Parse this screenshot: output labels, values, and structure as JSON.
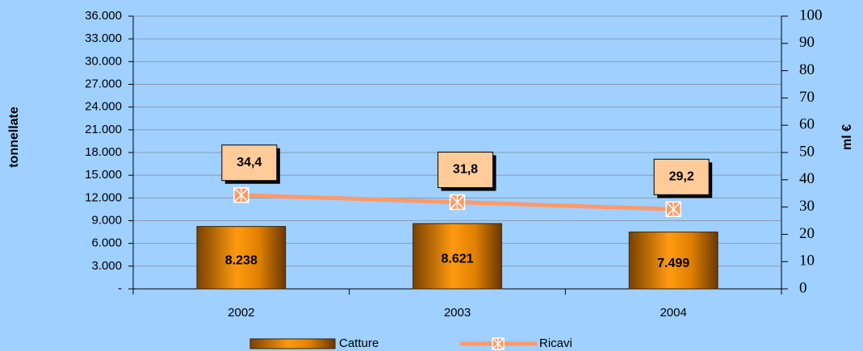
{
  "chart_data": {
    "type": "bar",
    "categories": [
      "2002",
      "2003",
      "2004"
    ],
    "series": [
      {
        "name": "Catture",
        "type": "bar",
        "color": "#cc7a00",
        "values": [
          8238,
          8621,
          7499
        ],
        "value_labels": [
          "8.238",
          "8.621",
          "7.499"
        ]
      },
      {
        "name": "Ricavi",
        "type": "line",
        "axis": "y2",
        "color": "#ff9966",
        "values": [
          34.4,
          31.8,
          29.2
        ],
        "value_labels": [
          "34,4",
          "31,8",
          "29,2"
        ]
      }
    ],
    "ylabel": "tonnellate",
    "y2label": "ml €",
    "ylim": [
      0,
      36000
    ],
    "yticks": [
      {
        "value": 0,
        "label": "-"
      },
      {
        "value": 3000,
        "label": "3.000"
      },
      {
        "value": 6000,
        "label": "6.000"
      },
      {
        "value": 9000,
        "label": "9.000"
      },
      {
        "value": 12000,
        "label": "12.000"
      },
      {
        "value": 15000,
        "label": "15.000"
      },
      {
        "value": 18000,
        "label": "18.000"
      },
      {
        "value": 21000,
        "label": "21.000"
      },
      {
        "value": 24000,
        "label": "24.000"
      },
      {
        "value": 27000,
        "label": "27.000"
      },
      {
        "value": 30000,
        "label": "30.000"
      },
      {
        "value": 33000,
        "label": "33.000"
      },
      {
        "value": 36000,
        "label": "36.000"
      }
    ],
    "y2lim": [
      0,
      100
    ],
    "y2ticks": [
      0,
      10,
      20,
      30,
      40,
      50,
      60,
      70,
      80,
      90,
      100
    ],
    "grid": true,
    "legend": "bottom"
  }
}
